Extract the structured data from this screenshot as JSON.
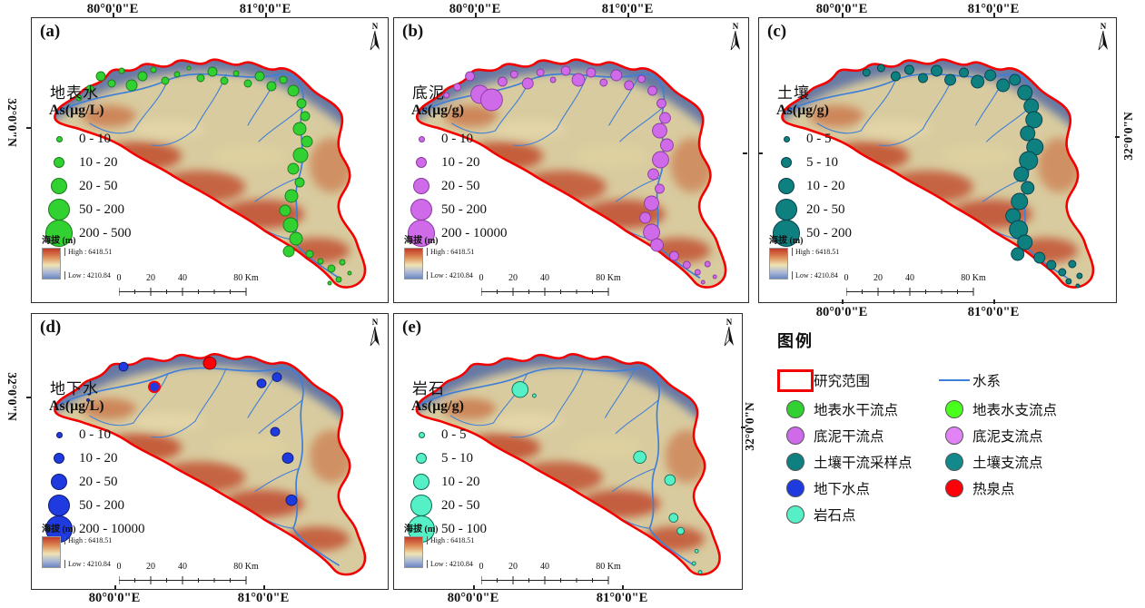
{
  "axis": {
    "lon_80": "80°0'0\"E",
    "lon_81": "81°0'0\"E",
    "lat": "32°0'0\"N"
  },
  "north_label": "N",
  "elevation": {
    "label": "海拔 (m)",
    "high": "High : 6418.51",
    "low": "Low : 4210.84"
  },
  "scalebar": {
    "t0": "0",
    "t1": "20",
    "t2": "40",
    "t3": "80 Km"
  },
  "colors": {
    "study_area_outline": "#f30000",
    "river": "#3f7fd8",
    "hot_spring": "#ff0008"
  },
  "panels": [
    {
      "id": "a",
      "label": "(a)",
      "title": "地表水",
      "unit": "As(μg/L)",
      "color": "#32d132",
      "stroke": "#1c7a1c",
      "classes": [
        "0 - 10",
        "10 - 20",
        "20 - 50",
        "50 - 200",
        "200 - 500"
      ],
      "points": [
        [
          52,
          88,
          3
        ],
        [
          64,
          78,
          4
        ],
        [
          76,
          64,
          5
        ],
        [
          88,
          72,
          4
        ],
        [
          99,
          58,
          3
        ],
        [
          110,
          74,
          6
        ],
        [
          122,
          64,
          5
        ],
        [
          134,
          57,
          3
        ],
        [
          147,
          69,
          4
        ],
        [
          160,
          62,
          3
        ],
        [
          173,
          55,
          2
        ],
        [
          186,
          66,
          4
        ],
        [
          199,
          59,
          5
        ],
        [
          212,
          69,
          4
        ],
        [
          225,
          61,
          3
        ],
        [
          238,
          72,
          4
        ],
        [
          251,
          64,
          5
        ],
        [
          264,
          75,
          5
        ],
        [
          277,
          68,
          4
        ],
        [
          288,
          80,
          6
        ],
        [
          297,
          94,
          5
        ],
        [
          301,
          108,
          5
        ],
        [
          295,
          122,
          7
        ],
        [
          303,
          136,
          6
        ],
        [
          296,
          151,
          8
        ],
        [
          288,
          166,
          6
        ],
        [
          295,
          181,
          5
        ],
        [
          286,
          196,
          7
        ],
        [
          279,
          212,
          6
        ],
        [
          285,
          228,
          8
        ],
        [
          291,
          243,
          7
        ],
        [
          283,
          257,
          6
        ],
        [
          306,
          260,
          4
        ],
        [
          318,
          268,
          3
        ],
        [
          330,
          276,
          4
        ],
        [
          342,
          269,
          3
        ],
        [
          350,
          281,
          2
        ],
        [
          338,
          288,
          3
        ],
        [
          328,
          292,
          2
        ]
      ]
    },
    {
      "id": "b",
      "label": "(b)",
      "title": "底泥",
      "unit": "As(μg/g)",
      "color": "#cf6ae8",
      "stroke": "#8a3aa0",
      "classes": [
        "0 - 10",
        "10 - 20",
        "20 - 50",
        "50 - 200",
        "200 - 10000"
      ],
      "points": [
        [
          58,
          85,
          3
        ],
        [
          70,
          76,
          4
        ],
        [
          84,
          64,
          5
        ],
        [
          95,
          84,
          10
        ],
        [
          108,
          90,
          12
        ],
        [
          120,
          70,
          5
        ],
        [
          133,
          62,
          4
        ],
        [
          148,
          72,
          6
        ],
        [
          162,
          60,
          4
        ],
        [
          176,
          68,
          3
        ],
        [
          190,
          58,
          5
        ],
        [
          204,
          68,
          7
        ],
        [
          218,
          60,
          5
        ],
        [
          232,
          71,
          4
        ],
        [
          246,
          63,
          6
        ],
        [
          260,
          74,
          5
        ],
        [
          274,
          67,
          4
        ],
        [
          286,
          80,
          5
        ],
        [
          296,
          94,
          5
        ],
        [
          300,
          110,
          6
        ],
        [
          294,
          124,
          8
        ],
        [
          302,
          140,
          7
        ],
        [
          295,
          156,
          9
        ],
        [
          287,
          172,
          6
        ],
        [
          294,
          188,
          5
        ],
        [
          285,
          204,
          8
        ],
        [
          278,
          220,
          6
        ],
        [
          285,
          236,
          9
        ],
        [
          291,
          250,
          7
        ],
        [
          310,
          262,
          5
        ],
        [
          324,
          272,
          4
        ],
        [
          336,
          280,
          3
        ],
        [
          347,
          271,
          3
        ],
        [
          355,
          285,
          2
        ],
        [
          342,
          291,
          2
        ]
      ]
    },
    {
      "id": "c",
      "label": "(c)",
      "title": "土壤",
      "unit": "As(μg/g)",
      "color": "#0f8080",
      "stroke": "#06404a",
      "classes": [
        "0 - 5",
        "5 - 10",
        "10 - 20",
        "20 - 50",
        "50 - 200"
      ],
      "points": [
        [
          118,
          60,
          4
        ],
        [
          134,
          55,
          4
        ],
        [
          150,
          64,
          5
        ],
        [
          165,
          57,
          5
        ],
        [
          180,
          66,
          5
        ],
        [
          195,
          58,
          6
        ],
        [
          210,
          68,
          6
        ],
        [
          225,
          60,
          5
        ],
        [
          240,
          70,
          7
        ],
        [
          254,
          63,
          6
        ],
        [
          268,
          74,
          7
        ],
        [
          281,
          68,
          6
        ],
        [
          292,
          82,
          8
        ],
        [
          299,
          97,
          8
        ],
        [
          302,
          112,
          9
        ],
        [
          295,
          127,
          8
        ],
        [
          303,
          142,
          9
        ],
        [
          296,
          157,
          10
        ],
        [
          288,
          172,
          8
        ],
        [
          295,
          187,
          7
        ],
        [
          286,
          202,
          9
        ],
        [
          279,
          218,
          8
        ],
        [
          285,
          233,
          10
        ],
        [
          292,
          247,
          8
        ],
        [
          284,
          260,
          7
        ],
        [
          308,
          264,
          6
        ],
        [
          321,
          272,
          5
        ],
        [
          333,
          280,
          4
        ],
        [
          344,
          271,
          4
        ],
        [
          352,
          284,
          3
        ],
        [
          340,
          290,
          3
        ],
        [
          350,
          295,
          2
        ]
      ]
    },
    {
      "id": "d",
      "label": "(d)",
      "title": "地下水",
      "unit": "As(μg/L)",
      "color": "#1f3be0",
      "stroke": "#0e1a70",
      "classes": [
        "0 - 10",
        "10 - 20",
        "20 - 50",
        "50 - 200",
        "200 - 10000"
      ],
      "points": [
        [
          62,
          98,
          1.5
        ],
        [
          101,
          60,
          5
        ],
        [
          135,
          83,
          6,
          "ring"
        ],
        [
          196,
          56,
          7,
          "red"
        ],
        [
          253,
          79,
          5
        ],
        [
          270,
          72,
          5
        ],
        [
          268,
          134,
          5
        ],
        [
          282,
          164,
          6
        ],
        [
          286,
          212,
          6
        ]
      ]
    },
    {
      "id": "e",
      "label": "(e)",
      "title": "岩石",
      "unit": "As(μg/g)",
      "color": "#55f0c5",
      "stroke": "#0c6b55",
      "classes": [
        "0 - 5",
        "5 - 10",
        "10 - 20",
        "20 - 50",
        "50 - 100"
      ],
      "points": [
        [
          142,
          86,
          9
        ],
        [
          158,
          93,
          2
        ],
        [
          277,
          163,
          7
        ],
        [
          311,
          189,
          6
        ],
        [
          315,
          232,
          5
        ],
        [
          323,
          247,
          4
        ],
        [
          341,
          270,
          2
        ],
        [
          338,
          284,
          2
        ],
        [
          345,
          294,
          2
        ]
      ]
    }
  ],
  "legend": {
    "title": "图例",
    "study_area": "研究范围",
    "river": "水系",
    "left": [
      {
        "label": "地表水干流点",
        "color": "#32d132"
      },
      {
        "label": "底泥干流点",
        "color": "#cf6ae8"
      },
      {
        "label": "土壤干流采样点",
        "color": "#0f8080"
      },
      {
        "label": "地下水点",
        "color": "#1f3be0"
      },
      {
        "label": "岩石点",
        "color": "#55f0c5"
      }
    ],
    "right": [
      {
        "label": "地表水支流点",
        "color": "#49ff1c"
      },
      {
        "label": "底泥支流点",
        "color": "#e183f7"
      },
      {
        "label": "土壤支流点",
        "color": "#13898c"
      },
      {
        "label": "热泉点",
        "color": "#ff0008"
      }
    ]
  }
}
